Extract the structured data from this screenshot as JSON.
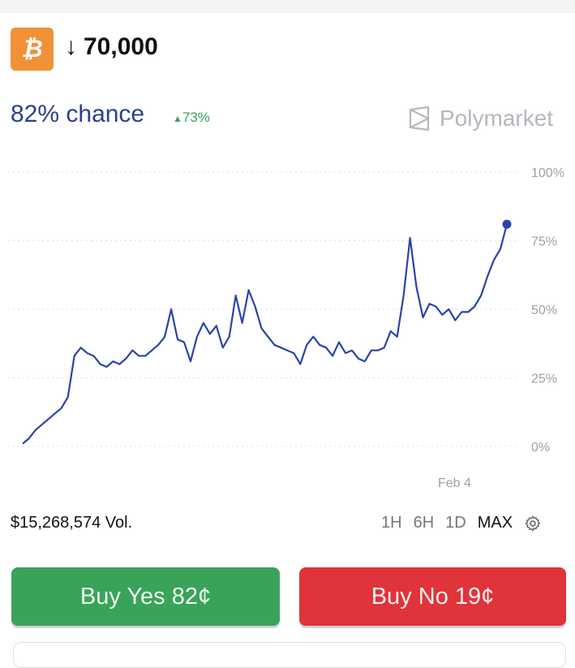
{
  "market": {
    "coin_icon": "bitcoin-icon",
    "direction_icon": "arrow-down-icon",
    "title": "70,000",
    "chance": "82% chance",
    "delta": "73%",
    "delta_icon": "triangle-up-icon",
    "brand": "Polymarket"
  },
  "colors": {
    "line": "#2a44a8",
    "yes": "#3aa35a",
    "no": "#e0333a",
    "chance": "#2a3f8f"
  },
  "chart_data": {
    "type": "line",
    "y_ticks": [
      "100%",
      "75%",
      "50%",
      "25%",
      "0%"
    ],
    "ylim": [
      0,
      100
    ],
    "x_tick_labels": [
      "Feb 4"
    ],
    "grid": true,
    "series": [
      {
        "values": [
          1,
          3,
          6,
          8,
          10,
          12,
          14,
          18,
          33,
          36,
          34,
          33,
          30,
          29,
          31,
          30,
          32,
          35,
          33,
          33,
          35,
          37,
          40,
          50,
          39,
          38,
          31,
          40,
          45,
          41,
          44,
          36,
          40,
          55,
          45,
          57,
          51,
          43,
          40,
          37,
          36,
          35,
          34,
          30,
          37,
          40,
          37,
          36,
          33,
          38,
          34,
          35,
          32,
          31,
          35,
          35,
          36,
          42,
          40,
          55,
          76,
          58,
          47,
          52,
          51,
          48,
          50,
          46,
          49,
          49,
          51,
          55,
          62,
          68,
          72,
          81
        ]
      }
    ],
    "last_point_marker": true
  },
  "footer": {
    "volume": "$15,268,574 Vol.",
    "ranges": [
      "1H",
      "6H",
      "1D",
      "MAX"
    ],
    "active_range": "MAX",
    "settings_icon": "gear-icon"
  },
  "actions": {
    "buy_yes": "Buy Yes 82¢",
    "buy_no": "Buy No 19¢"
  }
}
